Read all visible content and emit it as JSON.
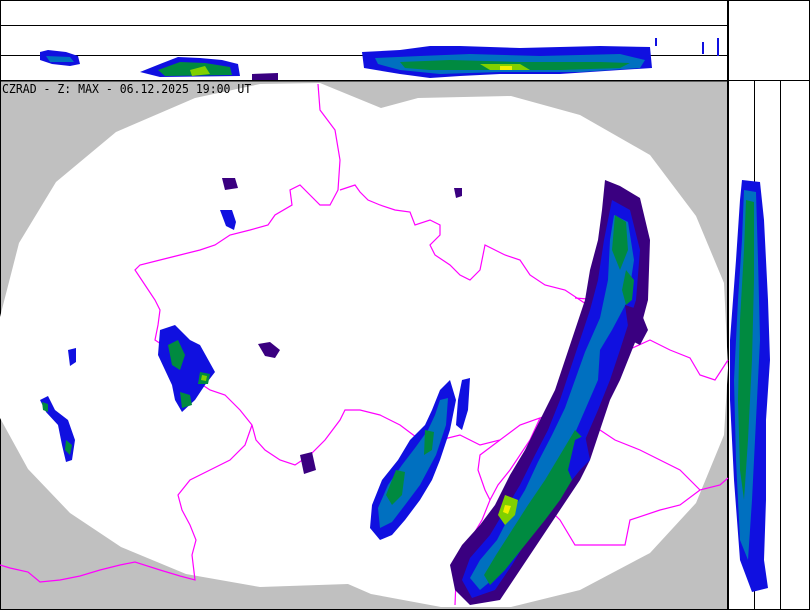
{
  "map": {
    "title": "CZRAD - Z: MAX - 06.12.2025 19:00 UT",
    "background_color": "#c0c0c0",
    "coverage_color": "#ffffff",
    "border_color": "#ff00ff",
    "echo_palette": [
      "#3a0080",
      "#1010e0",
      "#0070c0",
      "#008a40",
      "#00b000",
      "#80d000",
      "#f0f000"
    ]
  },
  "panels": {
    "top": "horizontal-section-max",
    "right": "vertical-section-max"
  }
}
